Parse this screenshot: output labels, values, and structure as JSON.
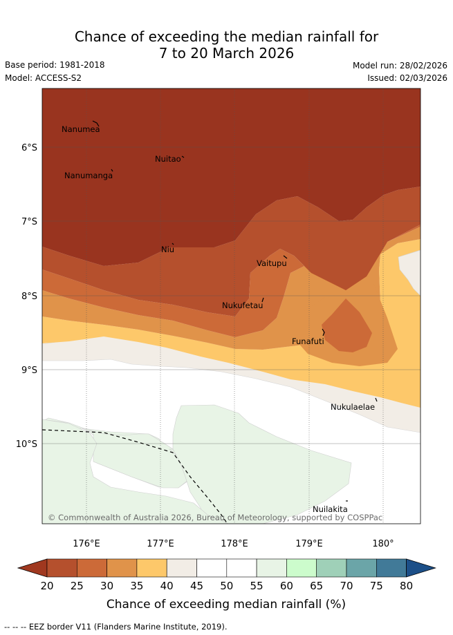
{
  "header": {
    "title_line1": "Chance of exceeding the median rainfall for",
    "title_line2": "7 to 20 March 2026",
    "base_period": "Base period: 1981-2018",
    "model": "Model: ACCESS-S2",
    "model_run": "Model run: 28/02/2026",
    "issued": "Issued: 02/03/2026"
  },
  "map": {
    "lat_labels": [
      "6°S",
      "7°S",
      "8°S",
      "9°S",
      "10°S"
    ],
    "lon_labels": [
      "176°E",
      "177°E",
      "178°E",
      "179°E",
      "180°"
    ],
    "places": [
      "Nanumea",
      "Nuitao",
      "Nanumanga",
      "Niu",
      "Vaitupu",
      "Nukufetau",
      "Funafuti",
      "Nukulaelae",
      "Nuilakita"
    ],
    "copyright": "© Commonwealth of Australia 2026, Bureau of Meteorology, supported by COSPPac"
  },
  "legend": {
    "ticks": [
      "20",
      "25",
      "30",
      "35",
      "40",
      "45",
      "50",
      "55",
      "60",
      "65",
      "70",
      "75",
      "80"
    ],
    "colors": [
      "#a0381f",
      "#b5502d",
      "#cc6a38",
      "#e0934a",
      "#fdc86a",
      "#f2ede6",
      "#ffffff",
      "#ffffff",
      "#e8f4e6",
      "#ccfccc",
      "#9fd0b8",
      "#6ba5a8",
      "#417a98",
      "#1c4f88"
    ],
    "label": "Chance of exceeding median rainfall (%)"
  },
  "footer": {
    "eez_note": "-- -- -- EEZ border V11 (Flanders Marine Institute, 2019)."
  }
}
